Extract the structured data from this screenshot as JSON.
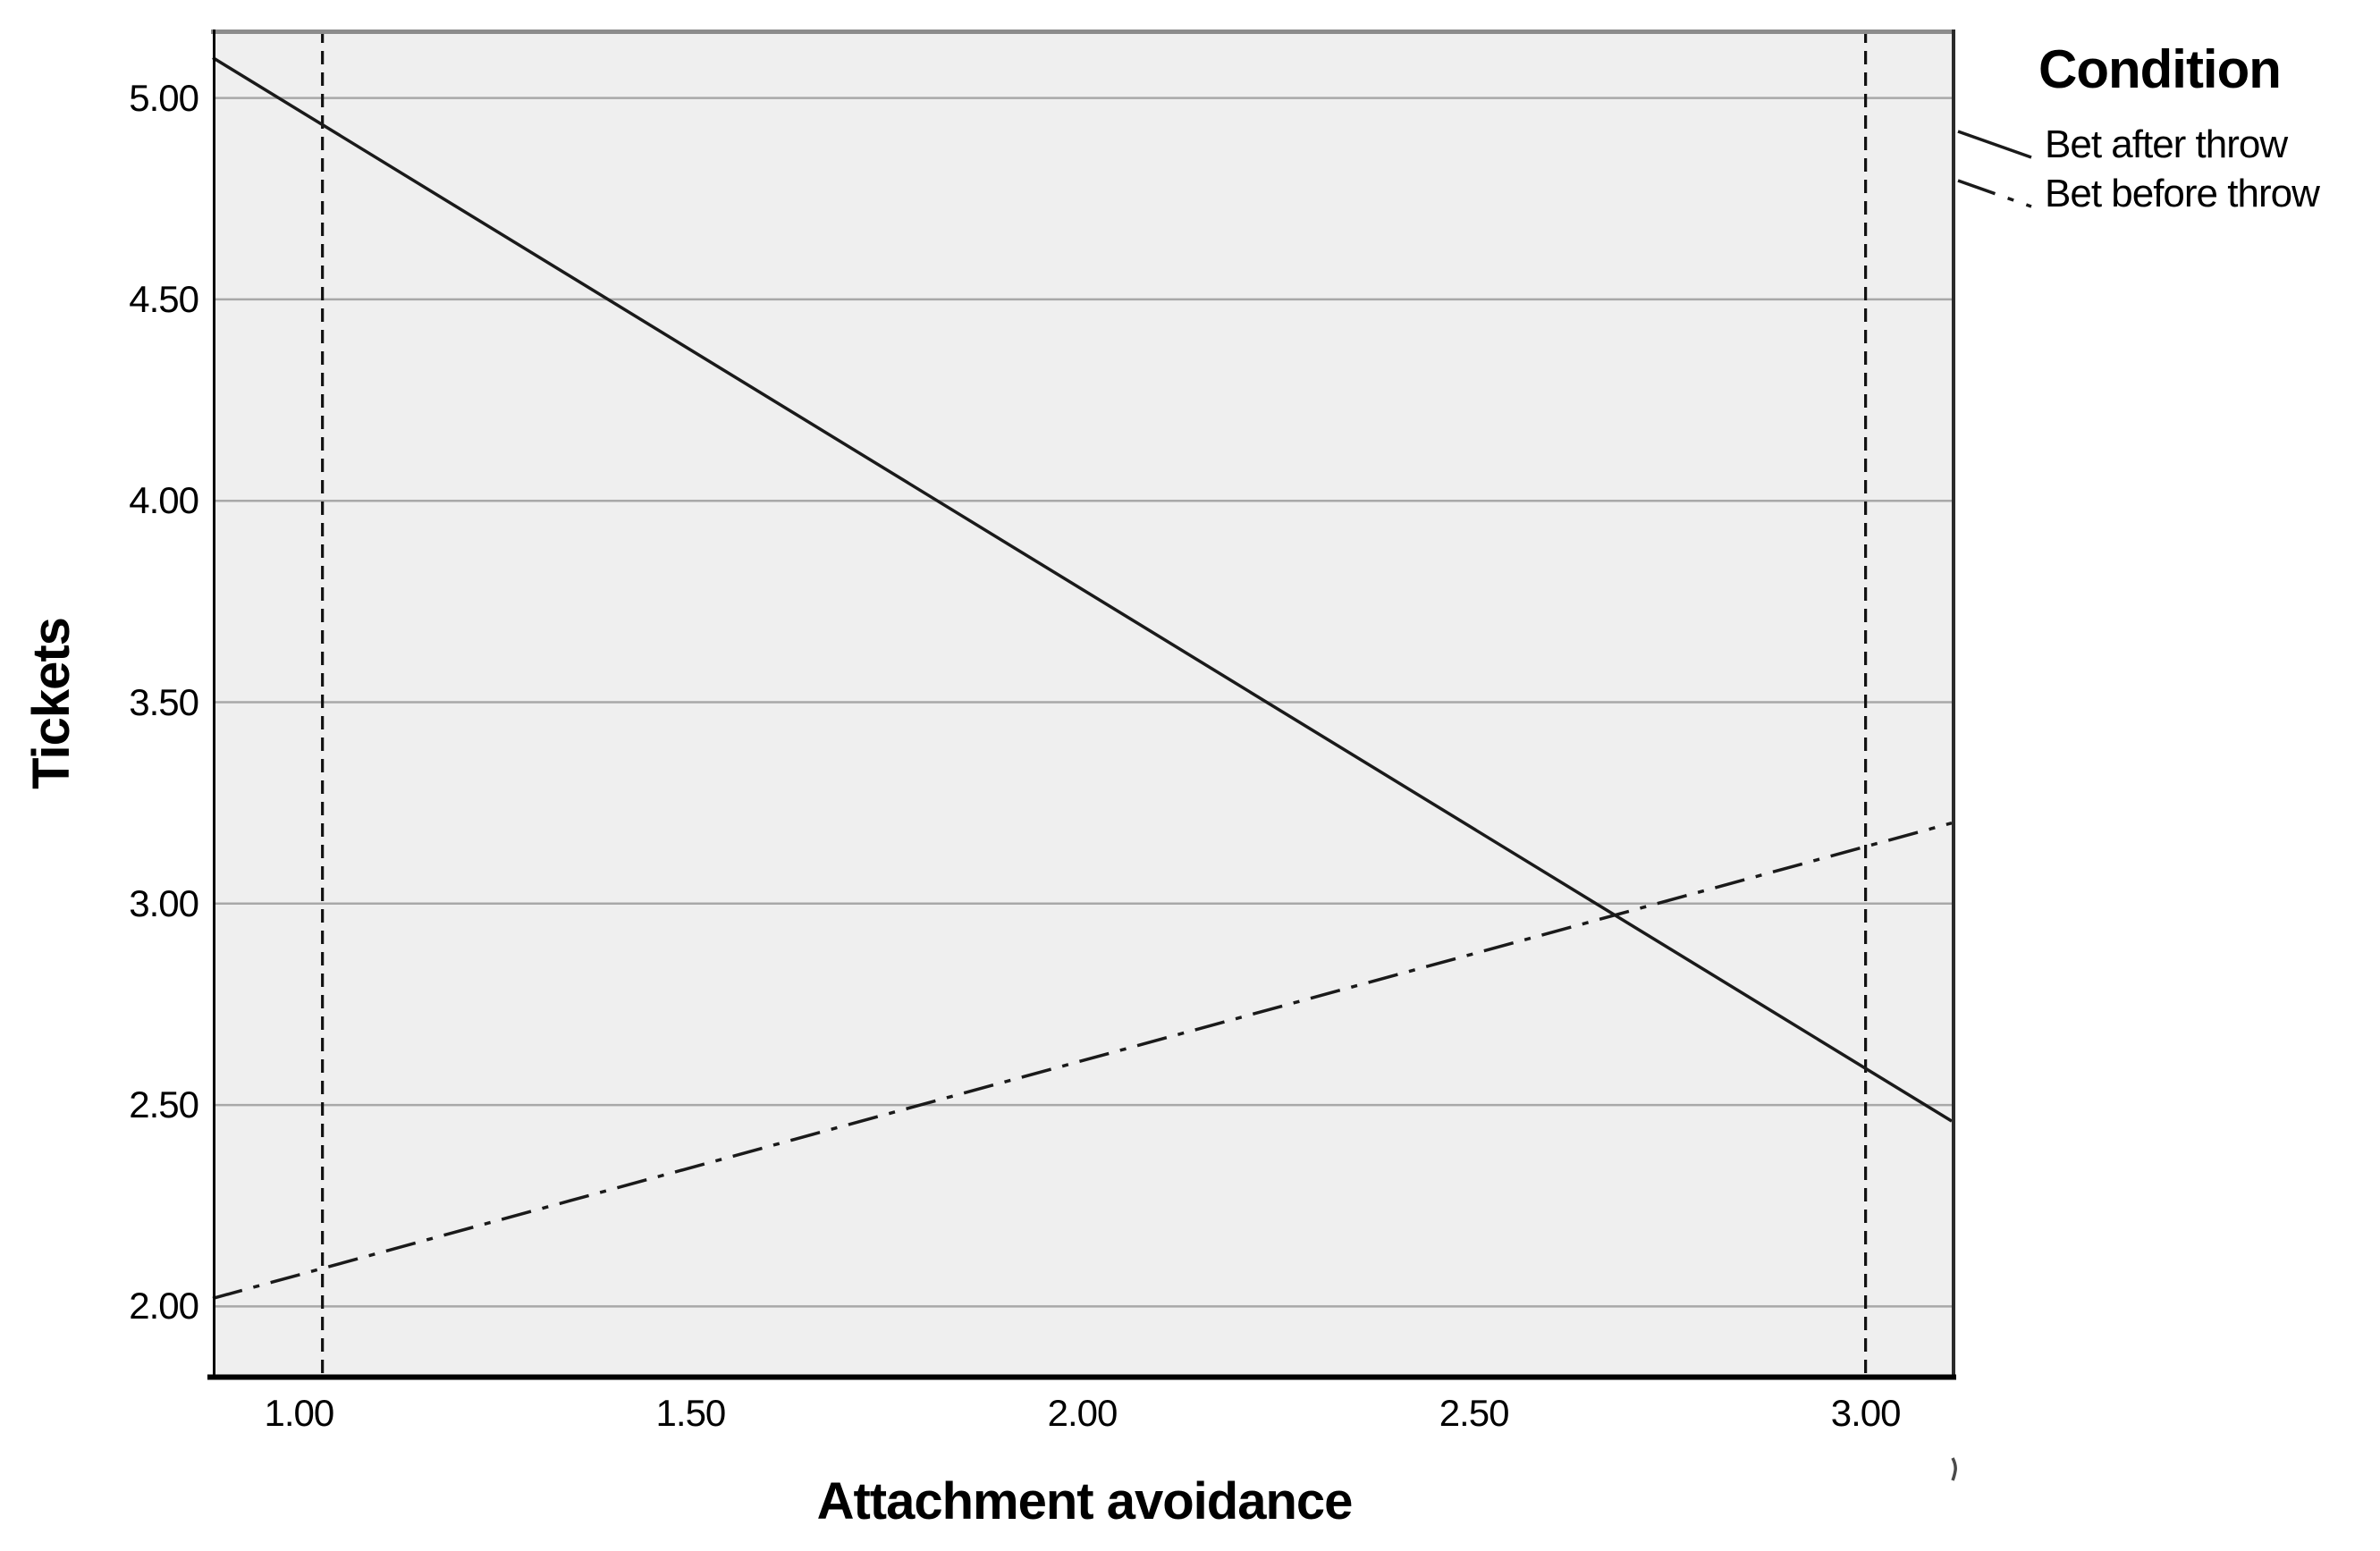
{
  "chart_data": {
    "type": "line",
    "title": "",
    "xlabel": "Attachment avoidance",
    "ylabel": "Tickets",
    "xlim": [
      0.89,
      3.11
    ],
    "ylim": [
      1.83,
      5.17
    ],
    "grid": "horizontal-only",
    "x_ticks": {
      "values": [
        1.0,
        1.5,
        2.0,
        2.5,
        3.0
      ],
      "labels": [
        "1.00",
        "1.50",
        "2.00",
        "2.50",
        "3.00"
      ]
    },
    "y_ticks": {
      "values": [
        2.0,
        2.5,
        3.0,
        3.5,
        4.0,
        4.5,
        5.0
      ],
      "labels": [
        "2.00",
        "2.50",
        "3.00",
        "3.50",
        "4.00",
        "4.50",
        "5.00"
      ]
    },
    "reference_lines_x": [
      1.03,
      3.0
    ],
    "series": [
      {
        "name": "Bet after throw",
        "line_style": "solid",
        "color": "#1a1a1a",
        "points": [
          [
            0.89,
            5.1
          ],
          [
            3.11,
            2.46
          ]
        ]
      },
      {
        "name": "Bet before throw",
        "line_style": "dash-dot",
        "color": "#1a1a1a",
        "points": [
          [
            0.89,
            2.02
          ],
          [
            3.11,
            3.2
          ]
        ]
      }
    ],
    "legend": {
      "title": "Condition",
      "position": "outside-top-right",
      "entries": [
        {
          "label": "Bet after throw",
          "line_style": "solid"
        },
        {
          "label": "Bet before throw",
          "line_style": "dash-dot"
        }
      ]
    },
    "colors": {
      "plot_background": "#efefef",
      "gridline": "#a8a8a8",
      "reference_line": "#111111",
      "axis_line": "#000000",
      "frame_top": "#8c8c8c",
      "frame_right": "#2b2b2b",
      "series_line": "#1a1a1a",
      "text": "#000000"
    }
  }
}
